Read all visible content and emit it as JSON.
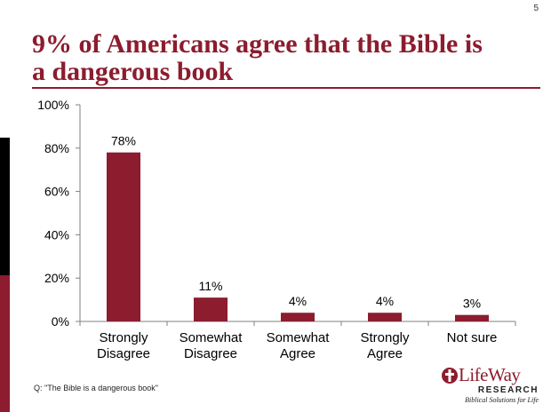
{
  "page_number": "5",
  "title_line1": "9% of Americans agree that the Bible is",
  "title_line2": "a dangerous book",
  "footnote": "Q: \"The Bible is a dangerous book\"",
  "logo": {
    "name": "LifeWay",
    "sub": "RESEARCH",
    "tagline": "Biblical Solutions for Life"
  },
  "colors": {
    "brand": "#8c1c2e",
    "bar": "#8c1c2e"
  },
  "chart_data": {
    "type": "bar",
    "title": "",
    "xlabel": "",
    "ylabel": "",
    "categories": [
      [
        "Strongly",
        "Disagree"
      ],
      [
        "Somewhat",
        "Disagree"
      ],
      [
        "Somewhat",
        "Agree"
      ],
      [
        "Strongly",
        "Agree"
      ],
      [
        "Not sure"
      ]
    ],
    "values": [
      78,
      11,
      4,
      4,
      3
    ],
    "data_labels": [
      "78%",
      "11%",
      "4%",
      "4%",
      "3%"
    ],
    "ylim": [
      0,
      100
    ],
    "yticks": [
      0,
      20,
      40,
      60,
      80,
      100
    ],
    "ytick_labels": [
      "0%",
      "20%",
      "40%",
      "60%",
      "80%",
      "100%"
    ],
    "grid": false,
    "legend": "none"
  }
}
